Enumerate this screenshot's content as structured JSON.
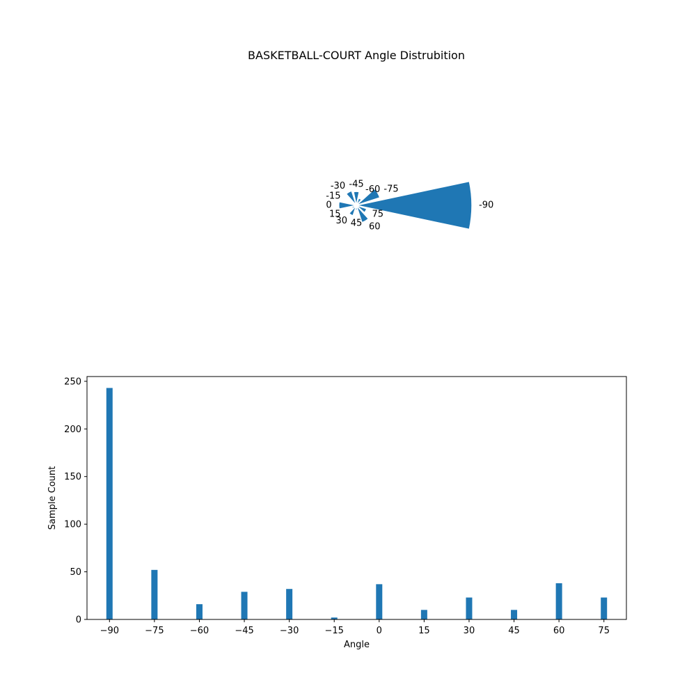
{
  "chart_data": [
    {
      "type": "polar-bar",
      "title": "BASKETBALL-COURT Angle Distrubition",
      "categories": [
        "-90",
        "-75",
        "-60",
        "-45",
        "-30",
        "-15",
        "0",
        "15",
        "30",
        "45",
        "60",
        "75"
      ],
      "values": [
        243,
        52,
        16,
        29,
        32,
        2,
        37,
        10,
        23,
        10,
        38,
        23
      ],
      "color": "#1f77b4",
      "grid": false
    },
    {
      "type": "bar",
      "categories": [
        -90,
        -75,
        -60,
        -45,
        -30,
        -15,
        0,
        15,
        30,
        45,
        60,
        75
      ],
      "tick_labels": [
        "−90",
        "−75",
        "−60",
        "−45",
        "−30",
        "−15",
        "0",
        "15",
        "30",
        "45",
        "60",
        "75"
      ],
      "values": [
        243,
        52,
        16,
        29,
        32,
        2,
        37,
        10,
        23,
        10,
        38,
        23
      ],
      "xlabel": "Angle",
      "ylabel": "Sample Count",
      "xlim": [
        -97.5,
        82.5
      ],
      "ylim": [
        0,
        255
      ],
      "yticks": [
        0,
        50,
        100,
        150,
        200,
        250
      ],
      "color": "#1f77b4",
      "grid": false
    }
  ]
}
